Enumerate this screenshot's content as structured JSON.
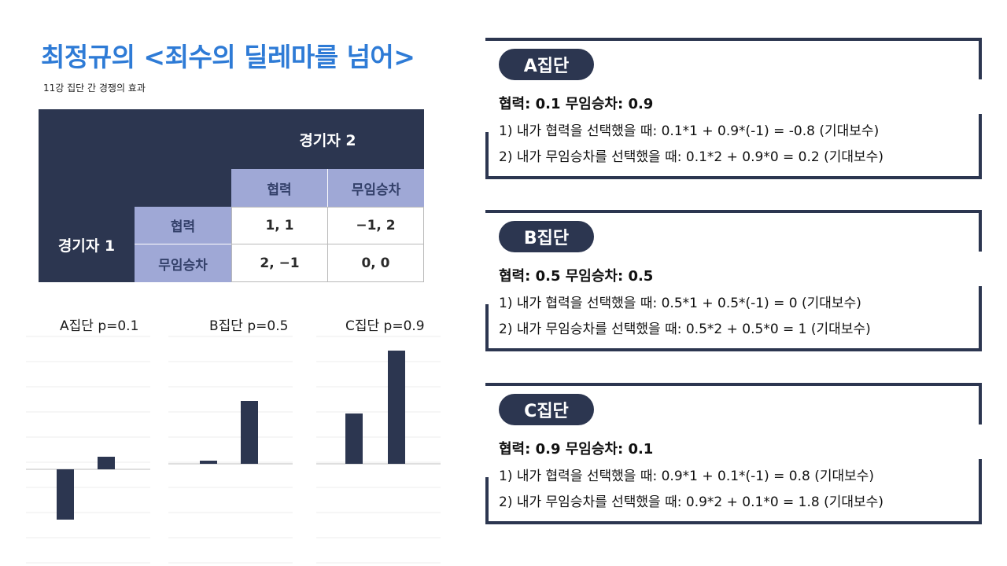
{
  "title": "최정규의 <죄수의 딜레마를 넘어>",
  "subtitle": "11강 집단 간 경쟁의 효과",
  "payoff_table": {
    "player2": "경기자 2",
    "player1": "경기자 1",
    "col_headers": [
      "협력",
      "무임승차"
    ],
    "row_headers": [
      "협력",
      "무임승차"
    ],
    "cells": [
      [
        "1, 1",
        "−1, 2"
      ],
      [
        "2, −1",
        "0, 0"
      ]
    ]
  },
  "charts": [
    {
      "title": "A집단 p=0.1",
      "values": [
        -0.8,
        0.2
      ]
    },
    {
      "title": "B집단 p=0.5",
      "values": [
        0,
        1
      ]
    },
    {
      "title": "C집단 p=0.9",
      "values": [
        0.8,
        1.8
      ]
    }
  ],
  "panels": [
    {
      "name": "A집단",
      "rates": "협력: 0.1 무임승차: 0.9",
      "line1": "1) 내가 협력을 선택했을 때: 0.1*1 + 0.9*(-1) = -0.8 (기대보수)",
      "line2": "2) 내가 무임승차를 선택했을 때: 0.1*2 + 0.9*0 = 0.2 (기대보수)"
    },
    {
      "name": "B집단",
      "rates": "협력: 0.5 무임승차: 0.5",
      "line1": "1) 내가 협력을 선택했을 때: 0.5*1 + 0.5*(-1) = 0 (기대보수)",
      "line2": "2) 내가 무임승차를 선택했을 때: 0.5*2 + 0.5*0 = 1 (기대보수)"
    },
    {
      "name": "C집단",
      "rates": "협력: 0.9 무임승차: 0.1",
      "line1": "1) 내가 협력을 선택했을 때: 0.9*1 + 0.1*(-1) = 0.8 (기대보수)",
      "line2": "2) 내가 무임승차를 선택했을 때: 0.9*2 + 0.1*0 = 1.8 (기대보수)"
    }
  ],
  "colors": {
    "title": "#2e7bd6",
    "dark": "#2c3650",
    "lavender": "#9fa8d6"
  }
}
